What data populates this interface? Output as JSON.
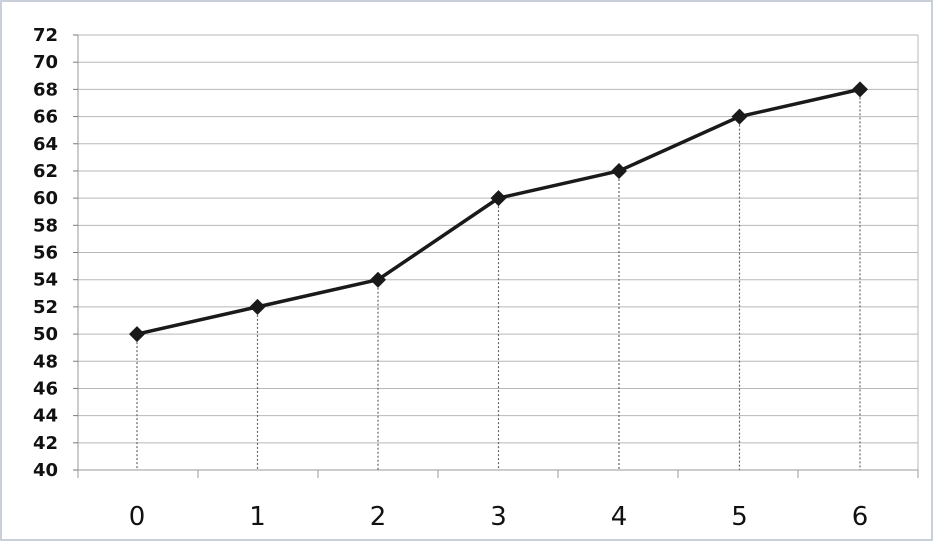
{
  "chart_data": {
    "type": "line",
    "x": [
      0,
      1,
      2,
      3,
      4,
      5,
      6
    ],
    "categories": [
      "0",
      "1",
      "2",
      "3",
      "4",
      "5",
      "6"
    ],
    "values": [
      50,
      52,
      54,
      60,
      62,
      66,
      68
    ],
    "ylim": [
      40,
      72
    ],
    "ystep": 2,
    "yticks": [
      "40",
      "42",
      "44",
      "46",
      "48",
      "50",
      "52",
      "54",
      "56",
      "58",
      "60",
      "62",
      "64",
      "66",
      "68",
      "70",
      "72"
    ],
    "title": "",
    "xlabel": "",
    "ylabel": "",
    "grid": true,
    "marker": "diamond",
    "drop_lines": true,
    "colors": {
      "line": "#1a1a1a",
      "grid": "#b8b8b8",
      "frame": "#c9d0d9"
    }
  }
}
